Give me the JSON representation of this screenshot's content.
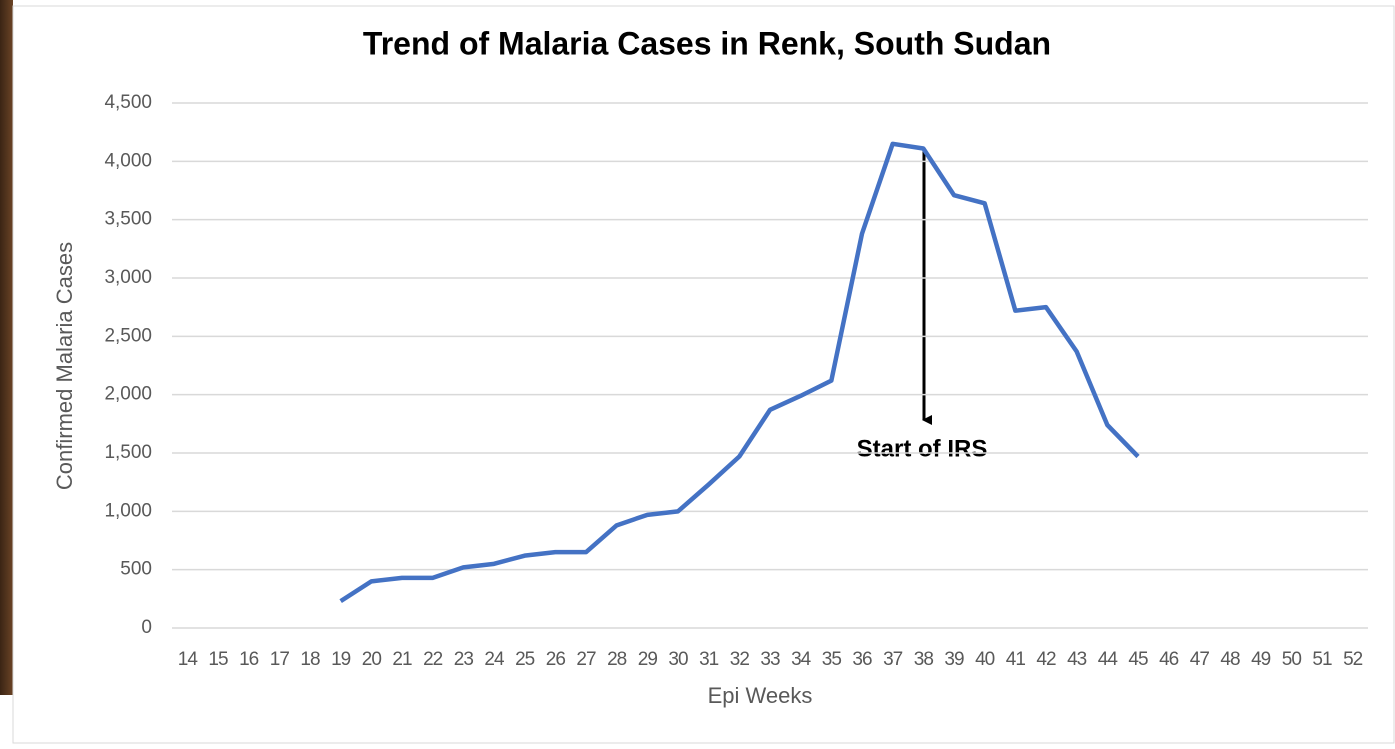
{
  "chart_data": {
    "type": "line",
    "title": "Trend of Malaria Cases in Renk, South Sudan",
    "x_label": "Epi Weeks",
    "y_label": "Confirmed Malaria Cases",
    "categories": [
      "14",
      "15",
      "16",
      "17",
      "18",
      "19",
      "20",
      "21",
      "22",
      "23",
      "24",
      "25",
      "26",
      "27",
      "28",
      "29",
      "30",
      "31",
      "32",
      "33",
      "34",
      "35",
      "36",
      "37",
      "38",
      "39",
      "40",
      "41",
      "42",
      "43",
      "44",
      "45",
      "46",
      "47",
      "48",
      "49",
      "50",
      "51",
      "52"
    ],
    "series": [
      {
        "name": "Confirmed Malaria Cases",
        "color": "#4472c4",
        "values": [
          null,
          null,
          null,
          null,
          null,
          230,
          400,
          430,
          430,
          520,
          550,
          620,
          650,
          650,
          880,
          970,
          1000,
          1230,
          1470,
          1870,
          1990,
          2120,
          3380,
          4150,
          4110,
          3710,
          3640,
          2720,
          2750,
          2370,
          1740,
          1470,
          null,
          null,
          null,
          null,
          null,
          null,
          null
        ]
      }
    ],
    "ylim": [
      0,
      4500
    ],
    "yticks": [
      0,
      500,
      {
        "value": 1000,
        "label": "1,000"
      },
      {
        "value": 1500,
        "label": "1,500"
      },
      {
        "value": 2000,
        "label": "2,000"
      },
      {
        "value": 2500,
        "label": "2,500"
      },
      {
        "value": 3000,
        "label": "3,000"
      },
      {
        "value": 3500,
        "label": "3,500"
      },
      {
        "value": 4000,
        "label": "4,000"
      },
      {
        "value": 4500,
        "label": "4,500"
      }
    ],
    "grid": true,
    "annotation": "Start of IRS"
  }
}
